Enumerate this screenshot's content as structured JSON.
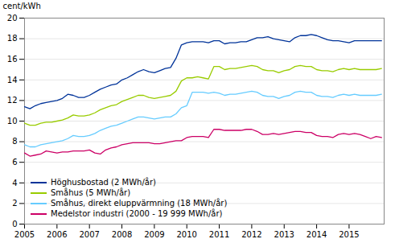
{
  "chart_data": {
    "type": "line",
    "ylabel": "cent/kWh",
    "x": [
      2005,
      2005.1666666666667,
      2005.3333333333333,
      2005.5,
      2005.6666666666667,
      2005.8333333333333,
      2006,
      2006.1666666666667,
      2006.3333333333333,
      2006.5,
      2006.6666666666667,
      2006.8333333333333,
      2007,
      2007.1666666666667,
      2007.3333333333333,
      2007.5,
      2007.6666666666667,
      2007.8333333333333,
      2008,
      2008.1666666666667,
      2008.3333333333333,
      2008.5,
      2008.6666666666667,
      2008.8333333333333,
      2009,
      2009.1666666666667,
      2009.3333333333333,
      2009.5,
      2009.6666666666667,
      2009.8333333333333,
      2010,
      2010.1666666666667,
      2010.3333333333333,
      2010.5,
      2010.6666666666667,
      2010.8333333333333,
      2011,
      2011.1666666666667,
      2011.3333333333333,
      2011.5,
      2011.6666666666667,
      2011.8333333333333,
      2012,
      2012.1666666666667,
      2012.3333333333333,
      2012.5,
      2012.6666666666667,
      2012.8333333333333,
      2013,
      2013.1666666666667,
      2013.3333333333333,
      2013.5,
      2013.6666666666667,
      2013.8333333333333,
      2014,
      2014.1666666666667,
      2014.3333333333333,
      2014.5,
      2014.6666666666667,
      2014.8333333333333,
      2015,
      2015.1666666666667,
      2015.3333333333333,
      2015.5,
      2015.6666666666667,
      2015.8333333333333,
      2016
    ],
    "series": [
      {
        "name": "Höghusbostad (2 MWh/år)",
        "color": "#003399",
        "values": [
          11.4,
          11.2,
          11.5,
          11.7,
          11.8,
          11.9,
          12.0,
          12.2,
          12.6,
          12.5,
          12.3,
          12.3,
          12.5,
          12.8,
          13.1,
          13.3,
          13.5,
          13.6,
          14.0,
          14.2,
          14.5,
          14.8,
          15.0,
          14.8,
          14.7,
          14.9,
          15.1,
          15.2,
          16.1,
          17.4,
          17.6,
          17.7,
          17.7,
          17.7,
          17.6,
          17.8,
          17.8,
          17.5,
          17.6,
          17.6,
          17.7,
          17.7,
          17.9,
          18.1,
          18.1,
          18.2,
          18.0,
          17.9,
          17.8,
          17.7,
          18.1,
          18.3,
          18.3,
          18.4,
          18.3,
          18.1,
          17.9,
          17.8,
          17.8,
          17.7,
          17.6,
          17.8,
          17.8,
          17.8,
          17.8,
          17.8,
          17.8
        ]
      },
      {
        "name": "Småhus (5 MWh/år)",
        "color": "#99cc00",
        "values": [
          9.8,
          9.6,
          9.6,
          9.8,
          9.9,
          9.9,
          10.0,
          10.1,
          10.3,
          10.6,
          10.5,
          10.5,
          10.6,
          10.8,
          11.1,
          11.3,
          11.5,
          11.6,
          11.9,
          12.1,
          12.3,
          12.5,
          12.5,
          12.3,
          12.2,
          12.3,
          12.4,
          12.5,
          12.9,
          13.9,
          14.2,
          14.2,
          14.3,
          14.2,
          14.1,
          15.3,
          15.3,
          15.0,
          15.1,
          15.1,
          15.2,
          15.3,
          15.4,
          15.3,
          15.0,
          14.9,
          14.9,
          14.7,
          14.9,
          15.0,
          15.3,
          15.4,
          15.3,
          15.3,
          15.0,
          14.9,
          14.9,
          14.8,
          15.0,
          15.1,
          15.0,
          15.1,
          15.0,
          15.0,
          15.0,
          15.0,
          15.1
        ]
      },
      {
        "name": "Småhus, direkt eluppvärmning (18 MWh/år)",
        "color": "#66ccff",
        "values": [
          7.7,
          7.5,
          7.5,
          7.7,
          7.8,
          7.9,
          8.0,
          8.1,
          8.3,
          8.6,
          8.5,
          8.5,
          8.6,
          8.8,
          9.1,
          9.3,
          9.5,
          9.6,
          9.8,
          10.0,
          10.2,
          10.4,
          10.4,
          10.3,
          10.2,
          10.3,
          10.4,
          10.4,
          10.7,
          11.3,
          11.5,
          12.8,
          12.8,
          12.8,
          12.7,
          12.8,
          12.7,
          12.5,
          12.6,
          12.6,
          12.7,
          12.8,
          12.9,
          12.8,
          12.5,
          12.4,
          12.4,
          12.2,
          12.4,
          12.5,
          12.8,
          12.9,
          12.8,
          12.8,
          12.5,
          12.4,
          12.4,
          12.3,
          12.5,
          12.6,
          12.5,
          12.6,
          12.5,
          12.5,
          12.5,
          12.5,
          12.6
        ]
      },
      {
        "name": "Medelstor industri (2000 - 19 999 MWh/år)",
        "color": "#cc0066",
        "values": [
          6.9,
          6.6,
          6.7,
          6.8,
          7.1,
          7.0,
          6.9,
          7.0,
          7.0,
          7.1,
          7.1,
          7.1,
          7.2,
          6.9,
          6.8,
          7.2,
          7.4,
          7.5,
          7.7,
          7.8,
          7.9,
          7.9,
          7.9,
          7.9,
          7.8,
          7.8,
          7.9,
          8.0,
          8.1,
          8.1,
          8.4,
          8.5,
          8.5,
          8.5,
          8.4,
          9.2,
          9.2,
          9.1,
          9.1,
          9.1,
          9.1,
          9.2,
          9.2,
          9.0,
          8.7,
          8.7,
          8.8,
          8.7,
          8.8,
          8.9,
          9.0,
          9.0,
          8.9,
          8.9,
          8.6,
          8.5,
          8.5,
          8.4,
          8.7,
          8.8,
          8.7,
          8.8,
          8.7,
          8.5,
          8.3,
          8.5,
          8.4
        ]
      }
    ],
    "xlim": [
      2005.0,
      2016.08
    ],
    "xticks": [
      2005,
      2006,
      2007,
      2008,
      2009,
      2010,
      2011,
      2012,
      2013,
      2014,
      2015
    ],
    "ylim": [
      0,
      20
    ],
    "yticks": [
      0,
      2,
      4,
      6,
      8,
      10,
      12,
      14,
      16,
      18,
      20
    ],
    "grid": true,
    "legend": "lower left"
  }
}
